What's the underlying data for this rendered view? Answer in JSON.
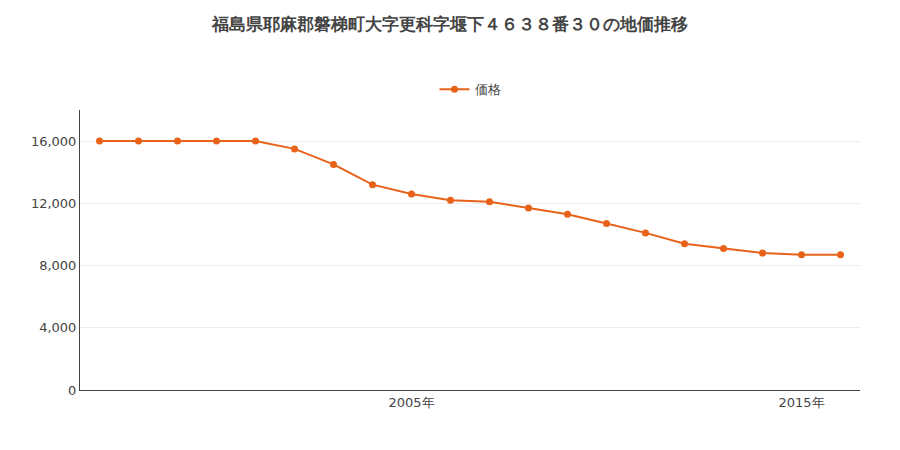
{
  "chart_data": {
    "type": "line",
    "title": "福島県耶麻郡磐梯町大字更科字堰下４６３８番３０の地価推移",
    "x": [
      1997,
      1998,
      1999,
      2000,
      2001,
      2002,
      2003,
      2004,
      2005,
      2006,
      2007,
      2008,
      2009,
      2010,
      2011,
      2012,
      2013,
      2014,
      2015,
      2016
    ],
    "series": [
      {
        "name": "価格",
        "color": "#E8621A",
        "marker": "circle",
        "values": [
          16000,
          16000,
          16000,
          16000,
          16000,
          15500,
          14500,
          13200,
          12600,
          12200,
          12100,
          11700,
          11300,
          10700,
          10100,
          9400,
          9100,
          8800,
          8700,
          8700
        ]
      }
    ],
    "xlim": [
      1996.5,
      2016.5
    ],
    "xticks": [
      {
        "value": 2005,
        "label": "2005年"
      },
      {
        "value": 2015,
        "label": "2015年"
      }
    ],
    "ylim": [
      0,
      18000
    ],
    "yticks": [
      0,
      {
        "value": 4000,
        "label": "4,000"
      },
      {
        "value": 8000,
        "label": "8,000"
      },
      {
        "value": 12000,
        "label": "12,000"
      },
      {
        "value": 16000,
        "label": "16,000"
      }
    ],
    "grid": "y",
    "legend": "top"
  }
}
